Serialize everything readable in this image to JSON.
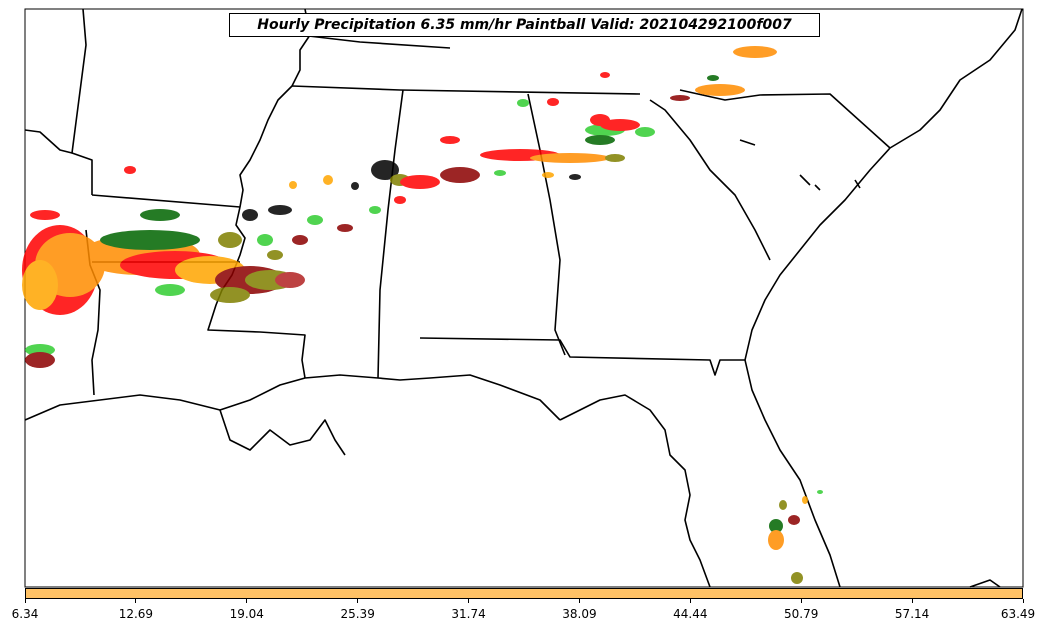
{
  "title": "Hourly Precipitation 6.35 mm/hr Paintball Valid: 202104292100f007",
  "colorbar": {
    "color": "#ffc266",
    "ticks": [
      "6.34",
      "12.69",
      "19.04",
      "25.39",
      "31.74",
      "38.09",
      "44.44",
      "50.79",
      "57.14",
      "63.49"
    ]
  },
  "map": {
    "region": "Southeastern United States",
    "features": [
      "coastline",
      "state-borders"
    ],
    "member_colors": [
      "#ff0000",
      "#ff8c00",
      "#00cc00",
      "#006400",
      "#8b0000",
      "#808000",
      "#000000",
      "#ff4040",
      "#ffa500",
      "#32cd32"
    ],
    "precip_regions": [
      "Louisiana / Texas / Arkansas band",
      "Mississippi band",
      "northern Alabama band",
      "Georgia / Carolina band",
      "southern Florida cluster"
    ]
  }
}
